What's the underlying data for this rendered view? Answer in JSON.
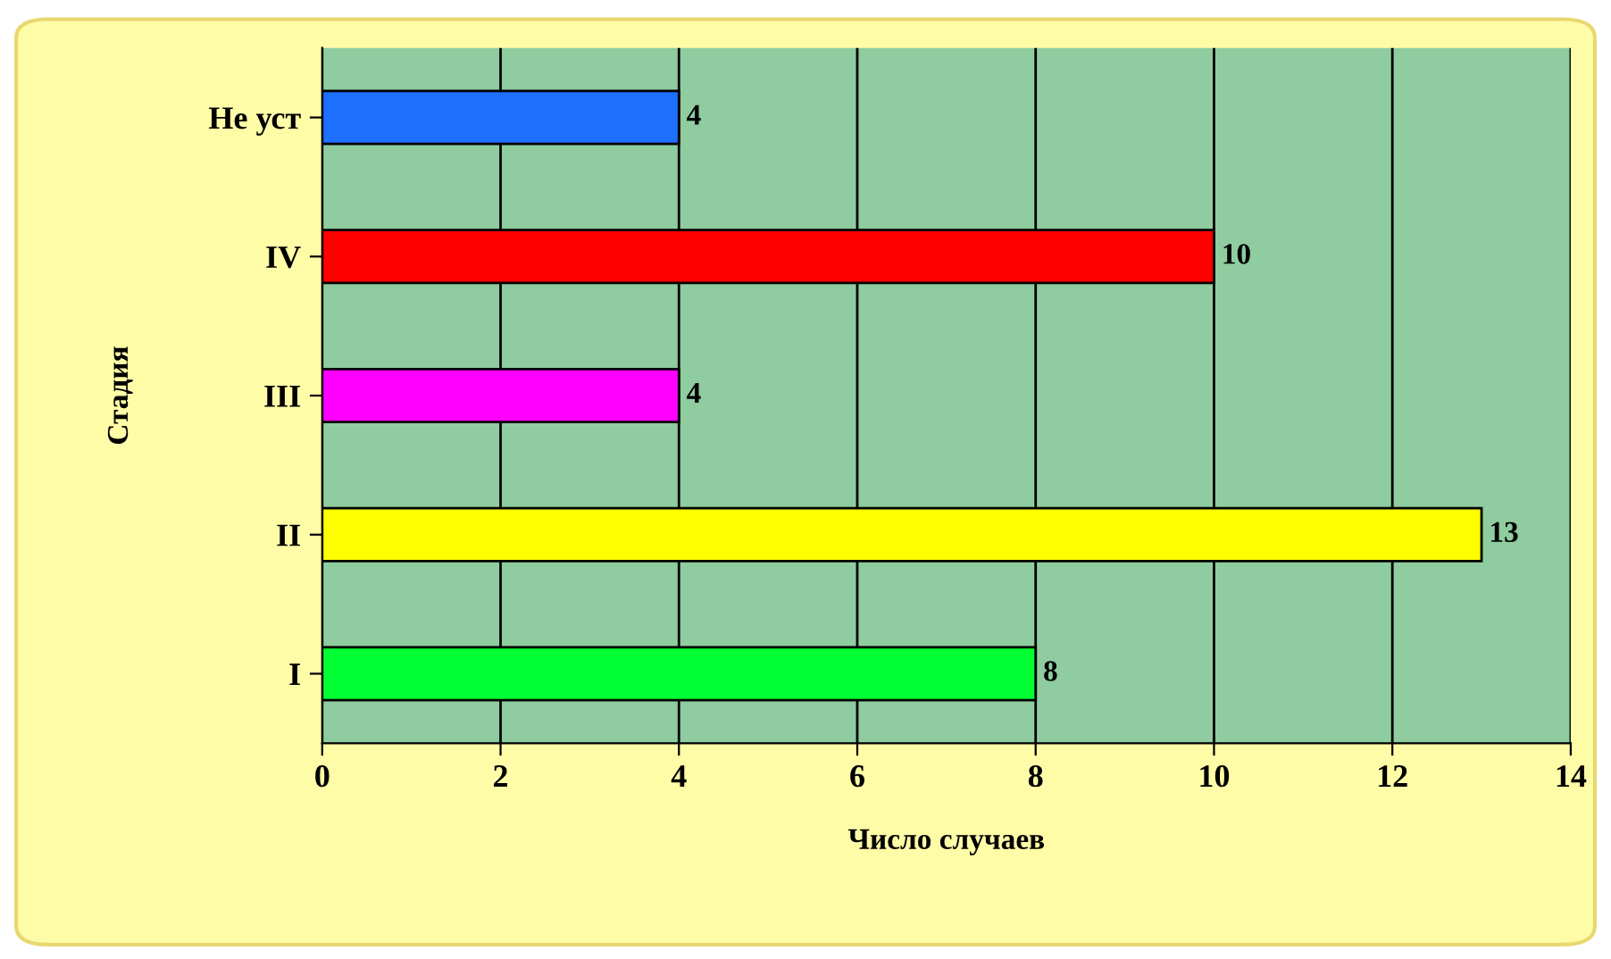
{
  "chart_data": {
    "type": "bar",
    "orientation": "horizontal",
    "xlabel": "Число случаев",
    "ylabel": "Стадия",
    "categories": [
      "Не уст",
      "IV",
      "III",
      "II",
      "I"
    ],
    "values": [
      4,
      10,
      4,
      13,
      8
    ],
    "colors": [
      "#1f6fff",
      "#ff0000",
      "#ff00ff",
      "#ffff00",
      "#00ff33"
    ],
    "xlim": [
      0,
      14
    ],
    "xticks": [
      0,
      2,
      4,
      6,
      8,
      10,
      12,
      14
    ],
    "grid": "x",
    "data_labels": true
  }
}
